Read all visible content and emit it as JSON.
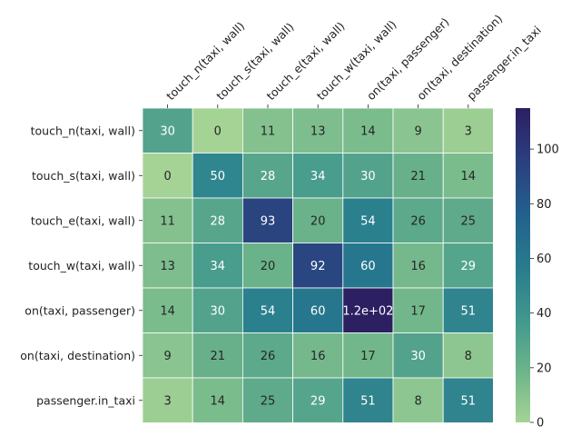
{
  "chart_data": {
    "type": "heatmap",
    "title": "",
    "xlabel": "",
    "ylabel": "",
    "x_labels": [
      "touch_n(taxi, wall)",
      "touch_s(taxi, wall)",
      "touch_e(taxi, wall)",
      "touch_w(taxi, wall)",
      "on(taxi, passenger)",
      "on(taxi, destination)",
      "passenger.in_taxi"
    ],
    "y_labels": [
      "touch_n(taxi, wall)",
      "touch_s(taxi, wall)",
      "touch_e(taxi, wall)",
      "touch_w(taxi, wall)",
      "on(taxi, passenger)",
      "on(taxi, destination)",
      "passenger.in_taxi"
    ],
    "values": [
      [
        30,
        0,
        11,
        13,
        14,
        9,
        3
      ],
      [
        0,
        50,
        28,
        34,
        30,
        21,
        14
      ],
      [
        11,
        28,
        93,
        20,
        54,
        26,
        25
      ],
      [
        13,
        34,
        20,
        92,
        60,
        16,
        29
      ],
      [
        14,
        30,
        54,
        60,
        115,
        17,
        51
      ],
      [
        9,
        21,
        26,
        16,
        17,
        30,
        8
      ],
      [
        3,
        14,
        25,
        29,
        51,
        8,
        51
      ]
    ],
    "cell_labels": [
      [
        "30",
        "0",
        "11",
        "13",
        "14",
        "9",
        "3"
      ],
      [
        "0",
        "50",
        "28",
        "34",
        "30",
        "21",
        "14"
      ],
      [
        "11",
        "28",
        "93",
        "20",
        "54",
        "26",
        "25"
      ],
      [
        "13",
        "34",
        "20",
        "92",
        "60",
        "16",
        "29"
      ],
      [
        "14",
        "30",
        "54",
        "60",
        "1.2e+02",
        "17",
        "51"
      ],
      [
        "9",
        "21",
        "26",
        "16",
        "17",
        "30",
        "8"
      ],
      [
        "3",
        "14",
        "25",
        "29",
        "51",
        "8",
        "51"
      ]
    ],
    "colorbar": {
      "min": 0,
      "max": 115,
      "ticks": [
        0,
        20,
        40,
        60,
        80,
        100
      ],
      "colormap": "crest",
      "stops": [
        "#a5d395",
        "#6cb38a",
        "#3f978e",
        "#277b8e",
        "#22608c",
        "#2b3f7e",
        "#2c1f62"
      ]
    },
    "grid": true,
    "x_tick_position": "top",
    "colorbar_position": "right"
  }
}
